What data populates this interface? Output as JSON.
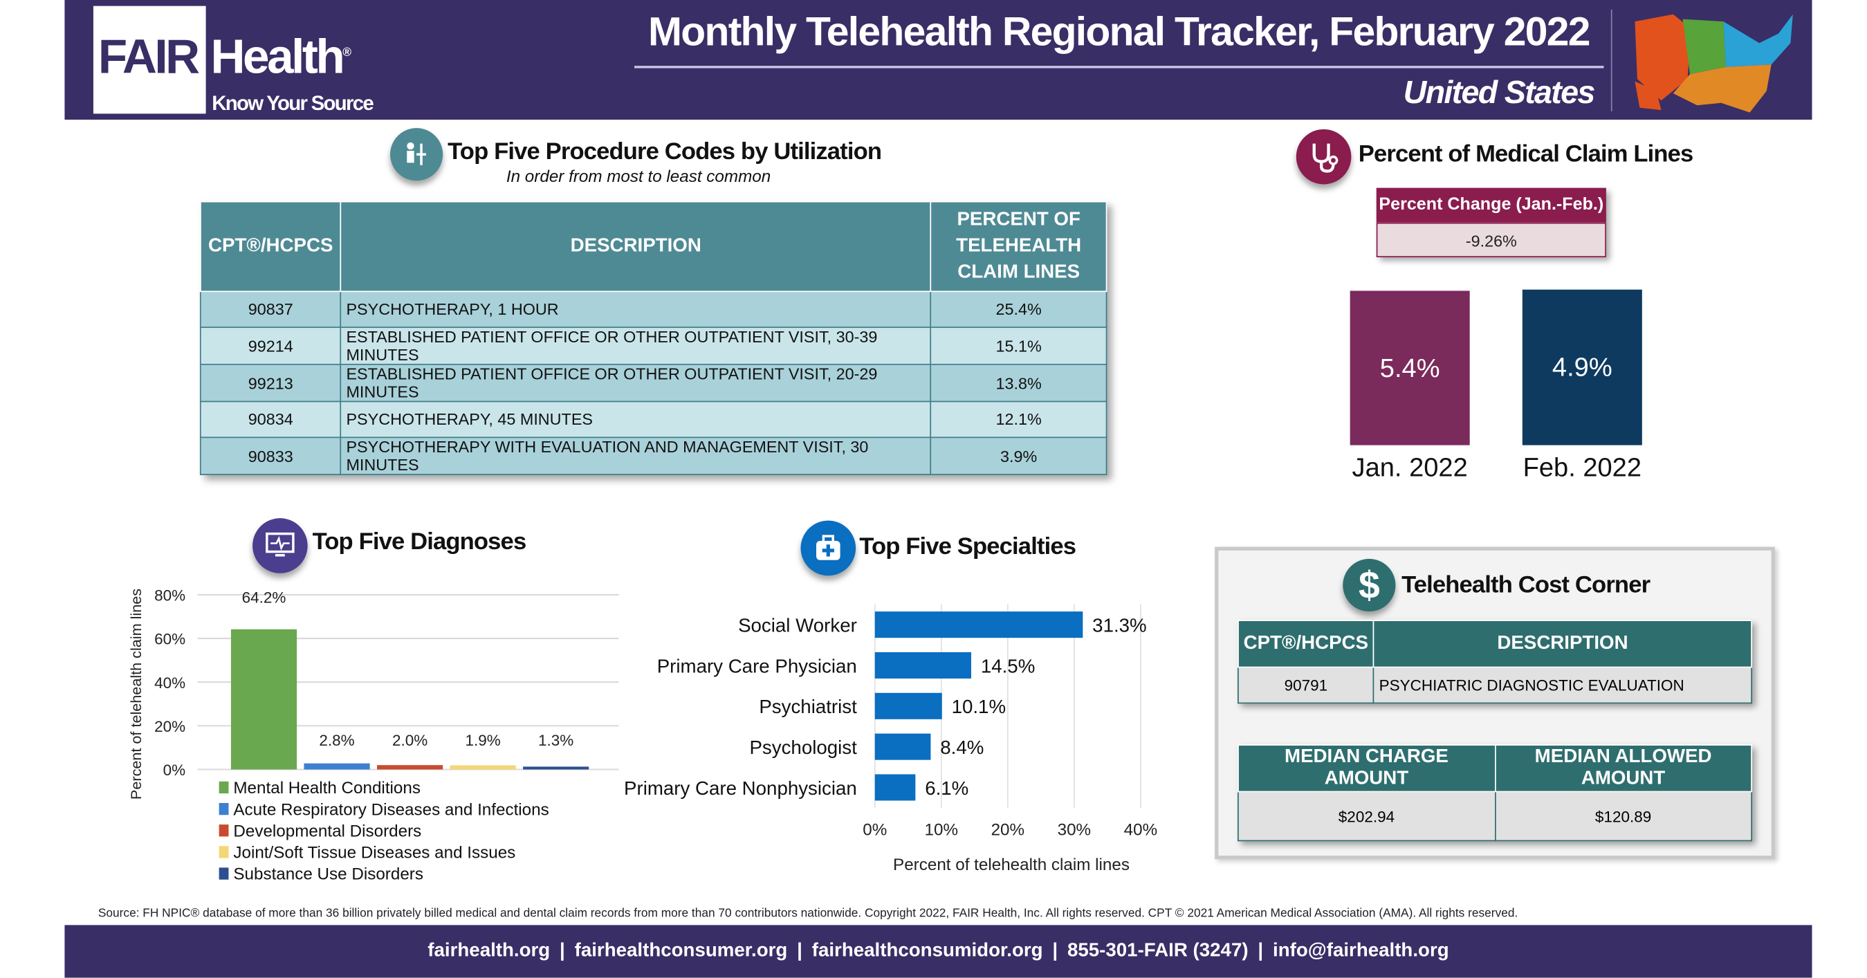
{
  "header": {
    "logo_fair": "FAIR",
    "logo_health": "Health",
    "logo_reg": "®",
    "logo_tagline": "Know Your Source",
    "title": "Monthly Telehealth Regional Tracker, February 2022",
    "region": "United States",
    "map_icon": "us-regions-map"
  },
  "procedures": {
    "title": "Top Five Procedure Codes by Utilization",
    "subtitle": "In order from most to least common",
    "icon": "doctor-patient-icon",
    "icon_color": "#4e8a94",
    "columns": [
      "CPT®/HCPCS",
      "DESCRIPTION",
      "PERCENT OF TELEHEALTH CLAIM LINES"
    ],
    "rows": [
      {
        "code": "90837",
        "description": "PSYCHOTHERAPY, 1 HOUR",
        "percent": "25.4%"
      },
      {
        "code": "99214",
        "description": "ESTABLISHED PATIENT OFFICE OR OTHER OUTPATIENT VISIT, 30-39 MINUTES",
        "percent": "15.1%"
      },
      {
        "code": "99213",
        "description": "ESTABLISHED PATIENT OFFICE OR OTHER OUTPATIENT VISIT, 20-29 MINUTES",
        "percent": "13.8%"
      },
      {
        "code": "90834",
        "description": "PSYCHOTHERAPY, 45 MINUTES",
        "percent": "12.1%"
      },
      {
        "code": "90833",
        "description": "PSYCHOTHERAPY WITH EVALUATION AND MANAGEMENT VISIT, 30 MINUTES",
        "percent": "3.9%"
      }
    ]
  },
  "percent_claims": {
    "title": "Percent of Medical Claim Lines",
    "icon": "stethoscope-icon",
    "icon_color": "#8a1c4e",
    "change_label": "Percent Change (Jan.-Feb.)",
    "change_value": "-9.26%",
    "bars": [
      {
        "label": "Jan. 2022",
        "value": "5.4%",
        "color": "#7b2a5c"
      },
      {
        "label": "Feb. 2022",
        "value": "4.9%",
        "color": "#0e3a5f"
      }
    ]
  },
  "cost_corner": {
    "title": "Telehealth Cost Corner",
    "icon": "dollar-icon",
    "icon_color": "#2f6e6e",
    "columns": [
      "CPT®/HCPCS",
      "DESCRIPTION"
    ],
    "code": "90791",
    "description": "PSYCHIATRIC DIAGNOSTIC EVALUATION",
    "amount_columns": [
      "MEDIAN CHARGE AMOUNT",
      "MEDIAN ALLOWED AMOUNT"
    ],
    "median_charge": "$202.94",
    "median_allowed": "$120.89"
  },
  "chart_data": [
    {
      "type": "bar",
      "title": "Top Five Diagnoses",
      "icon": "monitor-heartbeat-icon",
      "icon_color": "#4b3e8e",
      "ylabel": "Percent of telehealth claim lines",
      "ylim": [
        0,
        80
      ],
      "yticks": [
        "0%",
        "20%",
        "40%",
        "60%",
        "80%"
      ],
      "grid": true,
      "legend_placement": "bottom",
      "categories": [
        "Mental Health Conditions",
        "Acute Respiratory Diseases and Infections",
        "Developmental Disorders",
        "Joint/Soft Tissue Diseases and Issues",
        "Substance Use Disorders"
      ],
      "values": [
        64.2,
        2.8,
        2.0,
        1.9,
        1.3
      ],
      "labels": [
        "64.2%",
        "2.8%",
        "2.0%",
        "1.9%",
        "1.3%"
      ],
      "colors": [
        "#6aa84f",
        "#3d7fd1",
        "#c94a2e",
        "#f4d774",
        "#2d4f8f"
      ]
    },
    {
      "type": "bar",
      "orientation": "horizontal",
      "title": "Top Five Specialties",
      "icon": "medical-kit-icon",
      "icon_color": "#0a6ec1",
      "xlabel": "Percent of telehealth claim lines",
      "xlim": [
        0,
        40
      ],
      "xticks": [
        "0%",
        "10%",
        "20%",
        "30%",
        "40%"
      ],
      "grid": true,
      "categories": [
        "Social Worker",
        "Primary Care Physician",
        "Psychiatrist",
        "Psychologist",
        "Primary Care Nonphysician"
      ],
      "values": [
        31.3,
        14.5,
        10.1,
        8.4,
        6.1
      ],
      "labels": [
        "31.3%",
        "14.5%",
        "10.1%",
        "8.4%",
        "6.1%"
      ],
      "color": "#0a6ec1"
    }
  ],
  "footer": {
    "source": "Source: FH NPIC® database of more than 36 billion privately billed medical and dental claim records from more than 70 contributors nationwide. Copyright 2022, FAIR Health, Inc. All rights reserved. CPT © 2021 American Medical Association (AMA). All rights reserved.",
    "links": [
      "fairhealth.org",
      "fairhealthconsumer.org",
      "fairhealthconsumidor.org",
      "855-301-FAIR (3247)",
      "info@fairhealth.org"
    ],
    "separator": "|"
  }
}
